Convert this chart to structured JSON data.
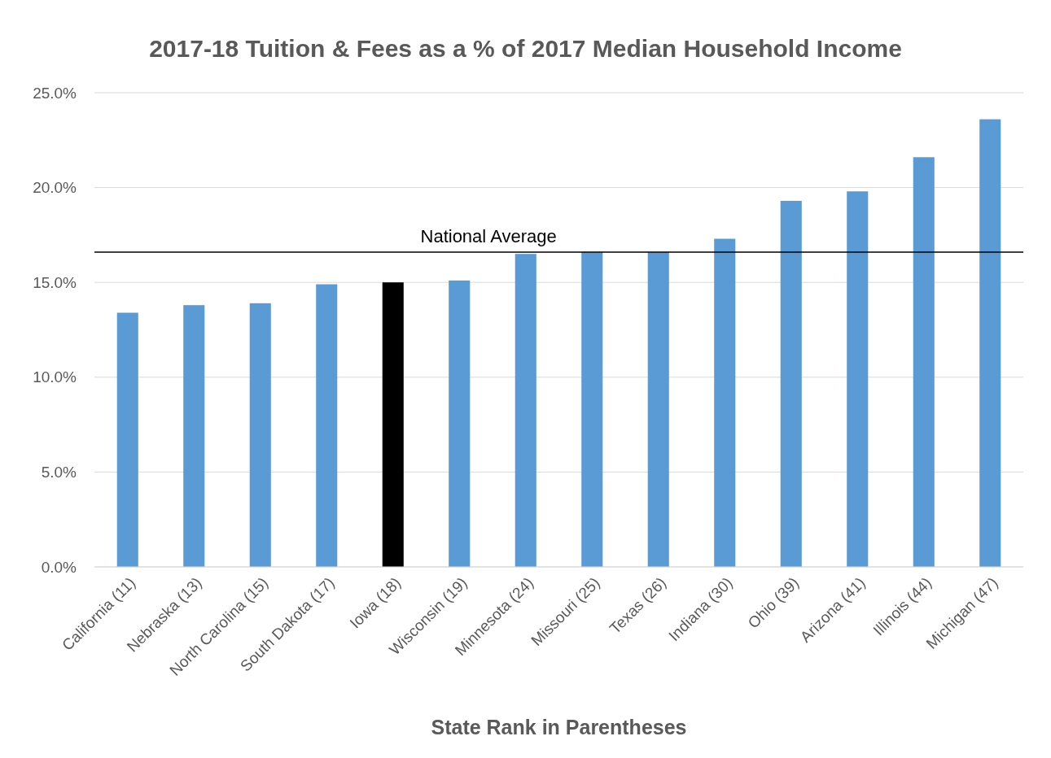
{
  "chart_data": {
    "type": "bar",
    "title": "2017-18 Tuition & Fees as a % of 2017 Median Household Income",
    "xlabel": "State Rank in Parentheses",
    "categories": [
      "California (11)",
      "Nebraska (13)",
      "North Carolina (15)",
      "South Dakota (17)",
      "Iowa (18)",
      "Wisconsin (19)",
      "Minnesota (24)",
      "Missouri (25)",
      "Texas (26)",
      "Indiana (30)",
      "Ohio (39)",
      "Arizona (41)",
      "Illinois (44)",
      "Michigan (47)"
    ],
    "values": [
      13.4,
      13.8,
      13.9,
      14.9,
      15.0,
      15.1,
      16.5,
      16.6,
      16.6,
      17.3,
      19.3,
      19.8,
      21.6,
      23.6
    ],
    "colors": [
      "#5b9bd5",
      "#5b9bd5",
      "#5b9bd5",
      "#5b9bd5",
      "#000000",
      "#5b9bd5",
      "#5b9bd5",
      "#5b9bd5",
      "#5b9bd5",
      "#5b9bd5",
      "#5b9bd5",
      "#5b9bd5",
      "#5b9bd5",
      "#5b9bd5"
    ],
    "ylim": [
      0,
      25
    ],
    "yticks": [
      {
        "value": 0,
        "label": "0.0%"
      },
      {
        "value": 5,
        "label": "5.0%"
      },
      {
        "value": 10,
        "label": "10.0%"
      },
      {
        "value": 15,
        "label": "15.0%"
      },
      {
        "value": 20,
        "label": "20.0%"
      },
      {
        "value": 25,
        "label": "25.0%"
      }
    ],
    "grid": "y",
    "ref_lines": [
      {
        "axis": "y",
        "value": 16.6,
        "label": "National Average",
        "color": "#000000"
      }
    ]
  }
}
